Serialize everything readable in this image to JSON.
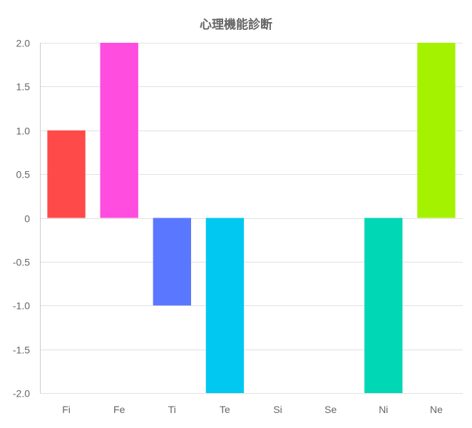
{
  "chart_data": {
    "type": "bar",
    "title": "心理機能診断",
    "categories": [
      "Fi",
      "Fe",
      "Ti",
      "Te",
      "Si",
      "Se",
      "Ni",
      "Ne"
    ],
    "values": [
      1,
      2,
      -1,
      -2,
      0,
      0,
      -2,
      2
    ],
    "colors": [
      "#ff4a4a",
      "#ff4ddf",
      "#5a78ff",
      "#00c8f0",
      "#9e9e9e",
      "#9e9e9e",
      "#00d7b4",
      "#a5f200"
    ],
    "ylim": [
      -2,
      2
    ],
    "yticks": [
      2.0,
      1.5,
      1.0,
      0.5,
      0,
      -0.5,
      -1.0,
      -1.5,
      -2.0
    ],
    "ytick_labels": [
      "2.0",
      "1.5",
      "1.0",
      "0.5",
      "0",
      "-0.5",
      "-1.0",
      "-1.5",
      "-2.0"
    ],
    "xlabel": "",
    "ylabel": "",
    "grid": true,
    "legend": "none"
  }
}
